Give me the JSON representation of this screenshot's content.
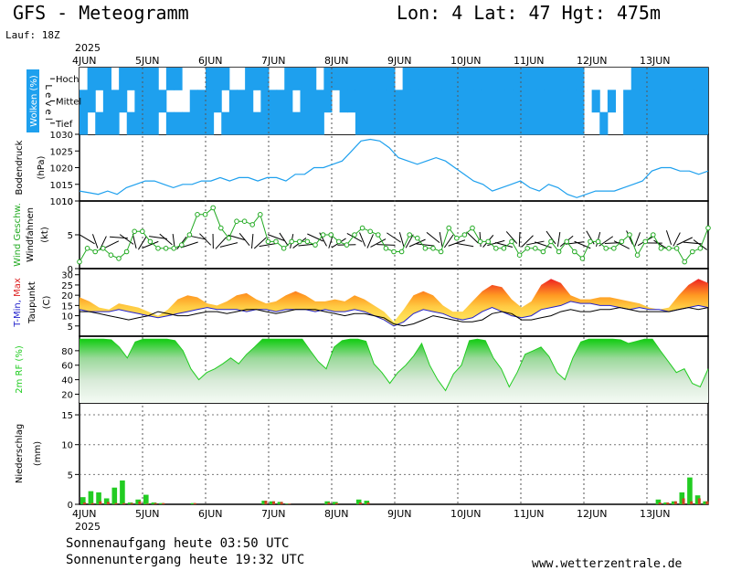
{
  "header": {
    "title": "GFS - Meteogramm",
    "coords": "Lon: 4  Lat: 47  Hgt: 475m",
    "run": "Lauf: 18Z"
  },
  "footer": {
    "sunrise": "Sonnenaufgang heute 03:50 UTC",
    "sunset": "Sonnenuntergang heute 19:32 UTC",
    "site": "www.wetterzentrale.de"
  },
  "time_axis": {
    "year": "2025",
    "days": [
      "4JUN",
      "5JUN",
      "6JUN",
      "7JUN",
      "8JUN",
      "9JUN",
      "10JUN",
      "11JUN",
      "12JUN",
      "13JUN"
    ]
  },
  "colors": {
    "cloud": "#1ea0ee",
    "pressure": "#1ea0ee",
    "wind": "#22aa22",
    "humidity": "#22cc22",
    "precip_rain": "#22cc22",
    "precip_other": "#cc4422",
    "tmin": "#2222cc",
    "tmax": "#dd2222"
  },
  "chart_data": [
    {
      "type": "heatmap",
      "panel": "clouds",
      "ylabel_parts": [
        "Wolken",
        "(%)"
      ],
      "level_label": "L e v e l",
      "levels": [
        "Hoch",
        "Mittel",
        "Tief"
      ],
      "x_step_hours": 3,
      "cover_pattern": {
        "Hoch": [
          0,
          1,
          1,
          1,
          0,
          1,
          1,
          1,
          1,
          1,
          0,
          1,
          1,
          0,
          0,
          0,
          1,
          1,
          1,
          0,
          0,
          1,
          1,
          1,
          0,
          0,
          1,
          1,
          1,
          1,
          0,
          1,
          1,
          1,
          1,
          1,
          1,
          1,
          1,
          1,
          0,
          1,
          1,
          1,
          1,
          1,
          1,
          1,
          1,
          1,
          1,
          1,
          1,
          1,
          1,
          1,
          1,
          1,
          1,
          1,
          1,
          1,
          1,
          1,
          0,
          0,
          0,
          0,
          0,
          0,
          1,
          1,
          1,
          1,
          1,
          1,
          1,
          1,
          1,
          1
        ],
        "Mittel": [
          1,
          1,
          0,
          1,
          1,
          1,
          0,
          1,
          1,
          1,
          1,
          0,
          0,
          0,
          1,
          1,
          1,
          1,
          0,
          1,
          1,
          1,
          0,
          1,
          1,
          1,
          1,
          0,
          1,
          1,
          1,
          1,
          0,
          1,
          1,
          1,
          1,
          1,
          1,
          1,
          1,
          1,
          1,
          1,
          1,
          1,
          1,
          1,
          1,
          1,
          1,
          1,
          1,
          1,
          1,
          1,
          1,
          1,
          1,
          1,
          1,
          1,
          1,
          1,
          0,
          1,
          0,
          1,
          0,
          1,
          1,
          1,
          1,
          1,
          1,
          1,
          1,
          1,
          1,
          1
        ],
        "Tief": [
          1,
          0,
          1,
          1,
          1,
          0,
          1,
          1,
          1,
          1,
          0,
          1,
          1,
          1,
          1,
          1,
          1,
          0,
          1,
          1,
          1,
          1,
          1,
          1,
          1,
          1,
          1,
          1,
          1,
          1,
          1,
          0,
          0,
          0,
          0,
          1,
          1,
          1,
          1,
          1,
          1,
          1,
          1,
          1,
          1,
          1,
          1,
          1,
          1,
          1,
          1,
          1,
          1,
          1,
          1,
          1,
          1,
          1,
          1,
          1,
          1,
          1,
          1,
          1,
          0,
          0,
          1,
          0,
          0,
          1,
          1,
          1,
          1,
          1,
          1,
          1,
          1,
          1,
          1,
          1
        ]
      }
    },
    {
      "type": "line",
      "panel": "pressure",
      "ylabel_parts": [
        "Bodendruck",
        "(hPa)"
      ],
      "ylim": [
        1010,
        1030
      ],
      "yticks": [
        1010,
        1015,
        1020,
        1025,
        1030
      ],
      "x_step_hours": 3,
      "values": [
        1013,
        1012.5,
        1012,
        1013,
        1012,
        1014,
        1015,
        1016,
        1016,
        1015,
        1014,
        1015,
        1015,
        1016,
        1016,
        1017,
        1016,
        1017,
        1017,
        1016,
        1017,
        1017,
        1016,
        1018,
        1018,
        1020,
        1020,
        1021,
        1022,
        1025,
        1028,
        1028.5,
        1028,
        1026,
        1023,
        1022,
        1021,
        1022,
        1023,
        1022,
        1020,
        1018,
        1016,
        1015,
        1013,
        1014,
        1015,
        1016,
        1014,
        1013,
        1015,
        1014,
        1012,
        1011,
        1012,
        1013,
        1013,
        1013,
        1014,
        1015,
        1016,
        1019,
        1020,
        1020,
        1019,
        1019,
        1018,
        1019
      ],
      "x_labels": []
    },
    {
      "type": "line",
      "panel": "wind",
      "ylabel_parts": [
        "Wind Geschw.",
        "Windfahnen",
        "(kt)"
      ],
      "ylim": [
        0,
        10
      ],
      "yticks": [
        0,
        5,
        10
      ],
      "x_step_hours": 3,
      "values": [
        1,
        3,
        2.5,
        3,
        2,
        1.5,
        2.5,
        5.5,
        5.5,
        4,
        3,
        3,
        3,
        3.5,
        5,
        8,
        8,
        9,
        6,
        4.5,
        7,
        7,
        6.5,
        8,
        4,
        4,
        3,
        4,
        4,
        4,
        3.5,
        5,
        5,
        4,
        3.5,
        5,
        6,
        5.5,
        5,
        3,
        2.5,
        2.5,
        5,
        4.5,
        3,
        3,
        2.5,
        6,
        4.5,
        5,
        6,
        4,
        4,
        3,
        3,
        4,
        2,
        3,
        3,
        2.5,
        4,
        2.5,
        4,
        2.5,
        1.5,
        4,
        4,
        3,
        3,
        4,
        5,
        2,
        4,
        5,
        3,
        3,
        3,
        1,
        2.5,
        3,
        6
      ]
    },
    {
      "type": "area",
      "panel": "temperature",
      "ylabel_parts": [
        "T-Min, Max",
        "Taupunkt",
        "(C)"
      ],
      "ylim": [
        0,
        33
      ],
      "yticks": [
        5,
        10,
        15,
        20,
        25,
        30
      ],
      "x_step_hours": 3,
      "series": [
        {
          "name": "T-Min",
          "values": [
            13,
            12,
            12,
            12,
            13,
            12,
            11,
            10,
            9,
            10,
            11,
            12,
            13,
            14,
            13,
            13,
            13,
            12,
            13,
            13,
            12,
            13,
            13,
            13,
            12,
            13,
            12,
            12,
            13,
            12,
            10,
            8,
            5,
            7,
            11,
            13,
            12,
            11,
            9,
            8,
            9,
            12,
            14,
            12,
            10,
            9,
            10,
            13,
            14,
            15,
            17,
            16,
            16,
            15,
            15,
            14,
            13,
            14,
            13,
            13,
            12,
            13,
            14,
            15,
            14,
            16
          ]
        },
        {
          "name": "Max",
          "values": [
            19,
            17,
            14,
            13,
            16,
            15,
            14,
            12,
            10,
            13,
            18,
            20,
            19,
            16,
            15,
            17,
            20,
            21,
            18,
            16,
            17,
            20,
            22,
            20,
            17,
            17,
            18,
            17,
            20,
            18,
            15,
            12,
            7,
            13,
            20,
            22,
            20,
            15,
            12,
            12,
            17,
            22,
            25,
            24,
            18,
            14,
            17,
            25,
            28,
            26,
            20,
            18,
            18,
            19,
            19,
            18,
            17,
            16,
            14,
            13,
            14,
            20,
            25,
            28,
            26
          ]
        },
        {
          "name": "Taupunkt",
          "values": [
            12,
            12,
            11,
            10,
            9,
            8,
            9,
            10,
            12,
            11,
            10,
            10,
            11,
            12,
            12,
            11,
            12,
            13,
            13,
            12,
            11,
            12,
            13,
            13,
            13,
            12,
            11,
            10,
            11,
            11,
            10,
            9,
            6,
            5,
            6,
            8,
            10,
            9,
            8,
            7,
            7,
            8,
            11,
            12,
            11,
            8,
            8,
            9,
            10,
            12,
            13,
            12,
            12,
            13,
            13,
            14,
            13,
            12,
            12,
            12,
            12,
            13,
            14,
            13,
            14
          ]
        }
      ]
    },
    {
      "type": "area",
      "panel": "humidity",
      "ylabel_parts": [
        "2m RF",
        "(%)"
      ],
      "ylim": [
        8,
        100
      ],
      "yticks": [
        20,
        40,
        60,
        80
      ],
      "x_step_hours": 3,
      "values": [
        96,
        96,
        96,
        96,
        95,
        85,
        70,
        92,
        96,
        96,
        96,
        96,
        94,
        80,
        55,
        40,
        50,
        55,
        62,
        70,
        62,
        75,
        85,
        96,
        96,
        96,
        96,
        96,
        96,
        80,
        65,
        55,
        85,
        94,
        96,
        96,
        93,
        62,
        50,
        35,
        50,
        60,
        73,
        90,
        60,
        40,
        25,
        48,
        60,
        94,
        96,
        94,
        70,
        55,
        30,
        50,
        75,
        80,
        85,
        72,
        50,
        40,
        70,
        92,
        96,
        96,
        96,
        96,
        95,
        90,
        93,
        96,
        96,
        80,
        65,
        50,
        55,
        35,
        30,
        55
      ]
    },
    {
      "type": "bar",
      "panel": "precipitation",
      "ylabel_parts": [
        "Niederschlag",
        "(mm)"
      ],
      "ylim": [
        0,
        17
      ],
      "yticks": [
        0,
        5,
        10,
        15
      ],
      "x_step_hours": 3,
      "series": [
        {
          "name": "total",
          "values": [
            1.2,
            2.2,
            2,
            1,
            2.8,
            4,
            0.3,
            0.8,
            1.6,
            0.3,
            0.2,
            0,
            0,
            0,
            0.2,
            0,
            0,
            0,
            0,
            0,
            0,
            0,
            0,
            0.6,
            0.5,
            0.4,
            0.1,
            0,
            0,
            0,
            0,
            0.5,
            0.4,
            0,
            0,
            0.8,
            0.6,
            0,
            0,
            0,
            0,
            0,
            0,
            0,
            0,
            0,
            0,
            0,
            0,
            0,
            0,
            0,
            0,
            0,
            0,
            0,
            0,
            0,
            0,
            0,
            0,
            0,
            0,
            0,
            0,
            0,
            0,
            0,
            0,
            0,
            0,
            0,
            0,
            0.8,
            0.3,
            0.5,
            2,
            4.5,
            1.5,
            0.5
          ]
        },
        {
          "name": "other",
          "values": [
            0.3,
            0.2,
            0.5,
            0.4,
            0.2,
            0.2,
            0.2,
            0.5,
            0.1,
            0.2,
            0.2,
            0,
            0,
            0,
            0.2,
            0,
            0,
            0,
            0,
            0,
            0,
            0,
            0,
            0.6,
            0.5,
            0.4,
            0.1,
            0,
            0,
            0,
            0,
            0.3,
            0.2,
            0,
            0,
            0.3,
            0.3,
            0,
            0,
            0,
            0,
            0,
            0,
            0,
            0,
            0,
            0,
            0,
            0,
            0,
            0,
            0,
            0,
            0,
            0,
            0,
            0,
            0,
            0,
            0,
            0,
            0,
            0,
            0,
            0,
            0,
            0,
            0,
            0,
            0,
            0,
            0,
            0,
            0.3,
            0.3,
            0.5,
            1,
            0.5,
            1,
            0.5
          ]
        }
      ]
    }
  ]
}
